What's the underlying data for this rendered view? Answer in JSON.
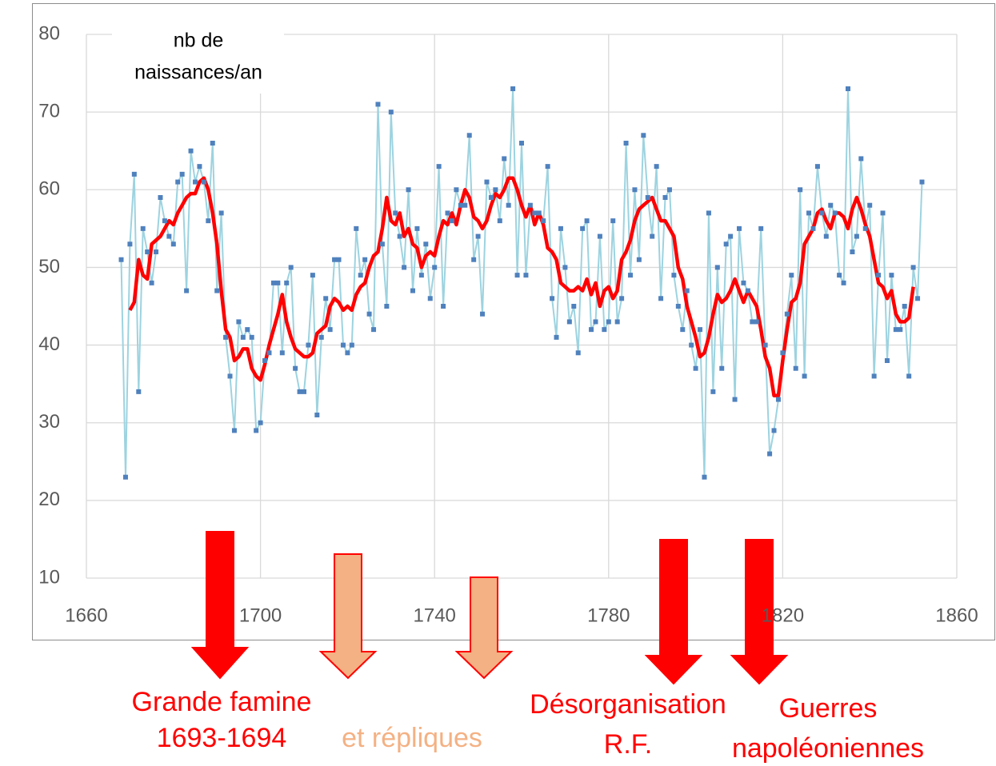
{
  "chart_data": {
    "type": "line",
    "ylabel": [
      "nb de",
      "naissances/an"
    ],
    "x": [
      1668,
      1669,
      1670,
      1671,
      1672,
      1673,
      1674,
      1675,
      1676,
      1677,
      1678,
      1679,
      1680,
      1681,
      1682,
      1683,
      1684,
      1685,
      1686,
      1687,
      1688,
      1689,
      1690,
      1691,
      1692,
      1693,
      1694,
      1695,
      1696,
      1697,
      1698,
      1699,
      1700,
      1701,
      1702,
      1703,
      1704,
      1705,
      1706,
      1707,
      1708,
      1709,
      1710,
      1711,
      1712,
      1713,
      1714,
      1715,
      1716,
      1717,
      1718,
      1719,
      1720,
      1721,
      1722,
      1723,
      1724,
      1725,
      1726,
      1727,
      1728,
      1729,
      1730,
      1731,
      1732,
      1733,
      1734,
      1735,
      1736,
      1737,
      1738,
      1739,
      1740,
      1741,
      1742,
      1743,
      1744,
      1745,
      1746,
      1747,
      1748,
      1749,
      1750,
      1751,
      1752,
      1753,
      1754,
      1755,
      1756,
      1757,
      1758,
      1759,
      1760,
      1761,
      1762,
      1763,
      1764,
      1765,
      1766,
      1767,
      1768,
      1769,
      1770,
      1771,
      1772,
      1773,
      1774,
      1775,
      1776,
      1777,
      1778,
      1779,
      1780,
      1781,
      1782,
      1783,
      1784,
      1785,
      1786,
      1787,
      1788,
      1789,
      1790,
      1791,
      1792,
      1793,
      1794,
      1795,
      1796,
      1797,
      1798,
      1799,
      1800,
      1801,
      1802,
      1803,
      1804,
      1805,
      1806,
      1807,
      1808,
      1809,
      1810,
      1811,
      1812,
      1813,
      1814,
      1815,
      1816,
      1817,
      1818,
      1819,
      1820,
      1821,
      1822,
      1823,
      1824,
      1825,
      1826,
      1827,
      1828,
      1829,
      1830,
      1831,
      1832,
      1833,
      1834,
      1835,
      1836,
      1837,
      1838,
      1839,
      1840,
      1841,
      1842,
      1843,
      1844,
      1845,
      1846,
      1847,
      1848,
      1849,
      1850,
      1851,
      1852
    ],
    "series": [
      {
        "color": "#9dd3e0",
        "marker_color": "#4f81bd",
        "values": [
          51,
          23,
          53,
          62,
          34,
          55,
          52,
          48,
          52,
          59,
          56,
          54,
          53,
          61,
          62,
          47,
          65,
          61,
          63,
          61,
          56,
          66,
          47,
          57,
          41,
          36,
          29,
          43,
          41,
          42,
          41,
          29,
          30,
          38,
          39,
          48,
          48,
          39,
          48,
          50,
          37,
          34,
          34,
          40,
          49,
          31,
          41,
          46,
          42,
          51,
          51,
          40,
          39,
          40,
          55,
          49,
          51,
          44,
          42,
          71,
          53,
          45,
          70,
          57,
          54,
          50,
          60,
          47,
          55,
          49,
          53,
          46,
          50,
          63,
          45,
          57,
          56,
          60,
          58,
          58,
          67,
          51,
          54,
          44,
          61,
          59,
          60,
          56,
          64,
          58,
          73,
          49,
          66,
          49,
          58,
          57,
          57,
          56,
          63,
          46,
          41,
          55,
          50,
          43,
          45,
          39,
          55,
          56,
          42,
          43,
          54,
          42,
          43,
          56,
          43,
          46,
          66,
          49,
          60,
          51,
          67,
          59,
          54,
          63,
          46,
          59,
          60,
          49,
          45,
          42,
          47,
          40,
          37,
          42,
          23,
          57,
          34,
          50,
          37,
          53,
          54,
          33,
          55,
          48,
          47,
          43,
          43,
          55,
          40,
          26,
          29,
          33,
          39,
          44,
          49,
          37,
          60,
          36,
          57,
          55,
          63,
          57,
          54,
          58,
          57,
          49,
          48,
          73,
          52,
          54,
          64,
          55,
          58,
          36,
          49,
          57,
          38,
          49,
          42,
          42,
          45,
          36,
          50,
          46,
          61
        ]
      },
      {
        "color": "#ff0000",
        "values": [
          null,
          null,
          44.5,
          45.5,
          51,
          49,
          48.5,
          53,
          53.5,
          54,
          55,
          56,
          55.5,
          57,
          58,
          59,
          59.5,
          59.5,
          61,
          61.5,
          60,
          57,
          53,
          47,
          42,
          41,
          38,
          38.5,
          39.5,
          39.5,
          37,
          36,
          35.5,
          37.5,
          40,
          42,
          44,
          46.5,
          43,
          41,
          39.5,
          39,
          38.5,
          38.5,
          39,
          41.5,
          42,
          42.5,
          45,
          46,
          45.5,
          44.5,
          45,
          44.5,
          46.5,
          47.5,
          48,
          50,
          51.5,
          52,
          55,
          59,
          56,
          55.5,
          57,
          54,
          55,
          53,
          52.5,
          50,
          51.5,
          52,
          51.5,
          54,
          56,
          55.5,
          57,
          55.5,
          58,
          60,
          59,
          56.5,
          56,
          55,
          56,
          58,
          59.5,
          59,
          60,
          61.5,
          61.5,
          60,
          58,
          56.5,
          58,
          55.5,
          57,
          55.5,
          52.5,
          52,
          51,
          48,
          47.5,
          47,
          47,
          47.5,
          47,
          48.5,
          46.5,
          48,
          45,
          47,
          47.5,
          46,
          47,
          51,
          52,
          53.5,
          56,
          57.5,
          58,
          58.5,
          59,
          57.5,
          56,
          56,
          55,
          54,
          50,
          48.5,
          45,
          43,
          41,
          38.5,
          39,
          41,
          44,
          46.5,
          45.5,
          46,
          47,
          48.5,
          47,
          45.5,
          47,
          46,
          45,
          42,
          38.5,
          37,
          33.5,
          33.5,
          38,
          42,
          45.5,
          46,
          48,
          53,
          54,
          55,
          57,
          57.5,
          56,
          55,
          57,
          57,
          56.5,
          55,
          57.5,
          59,
          57.5,
          55.5,
          54,
          51,
          48,
          47.5,
          46,
          47,
          44,
          43,
          43,
          43.5,
          47.5,
          null,
          null
        ]
      }
    ],
    "xlim": [
      1660,
      1860
    ],
    "xticks": [
      1660,
      1700,
      1740,
      1780,
      1820,
      1860
    ],
    "ylim": [
      10,
      80
    ],
    "yticks": [
      10,
      20,
      30,
      40,
      50,
      60,
      70,
      80
    ],
    "grid": true,
    "annotations": [
      {
        "lines": [
          "Grande famine",
          "1693-1694"
        ],
        "color": "#ff0000"
      },
      {
        "lines": [
          "et répliques"
        ],
        "color": "#f4b183"
      },
      {
        "lines": [
          "Désorganisation",
          "R.F."
        ],
        "color": "#ff0000"
      },
      {
        "lines": [
          "Guerres",
          "napoléoniennes"
        ],
        "color": "#ff0000"
      }
    ]
  }
}
